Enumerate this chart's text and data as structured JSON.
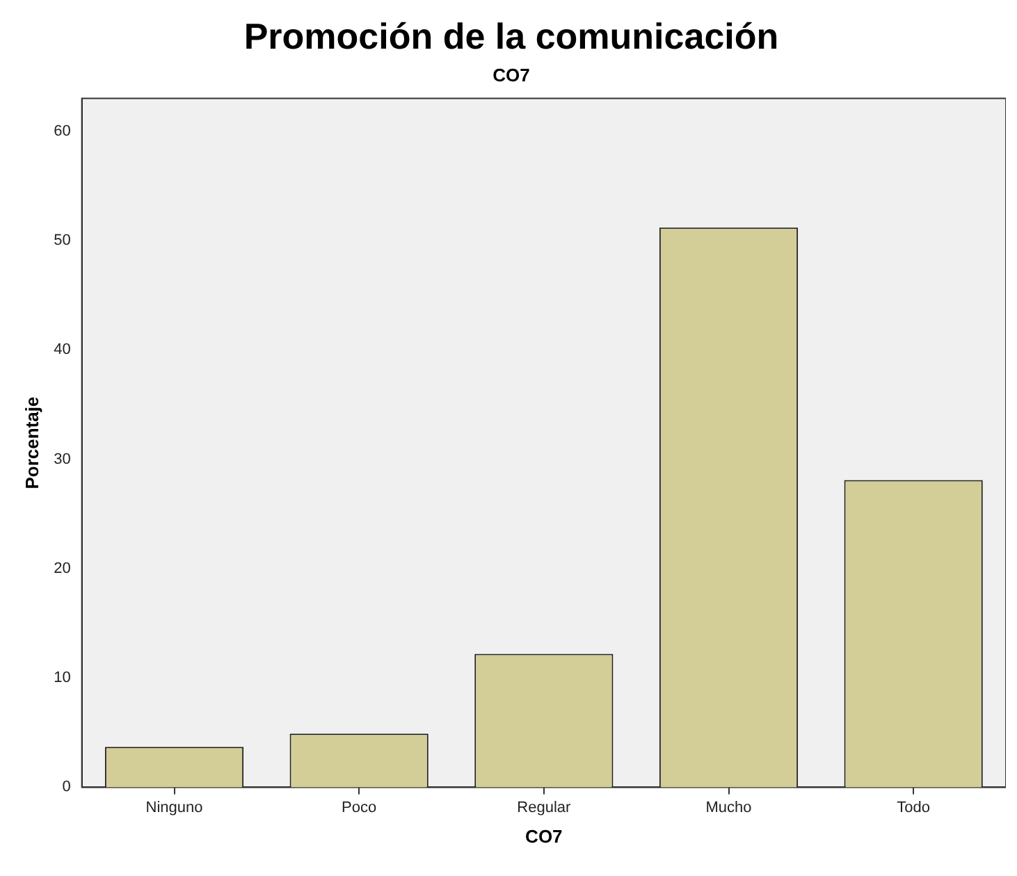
{
  "chart_data": {
    "type": "bar",
    "title": "Promoción de la comunicación",
    "subtitle": "CO7",
    "xlabel": "CO7",
    "ylabel": "Porcentaje",
    "categories": [
      "Ninguno",
      "Poco",
      "Regular",
      "Mucho",
      "Todo"
    ],
    "values": [
      3.7,
      4.9,
      12.2,
      51.2,
      28.1
    ],
    "color": "#d3ce97",
    "ylim": [
      0,
      63
    ],
    "yticks": [
      0,
      10,
      20,
      30,
      40,
      50,
      60
    ],
    "grid": false,
    "legend": false
  }
}
